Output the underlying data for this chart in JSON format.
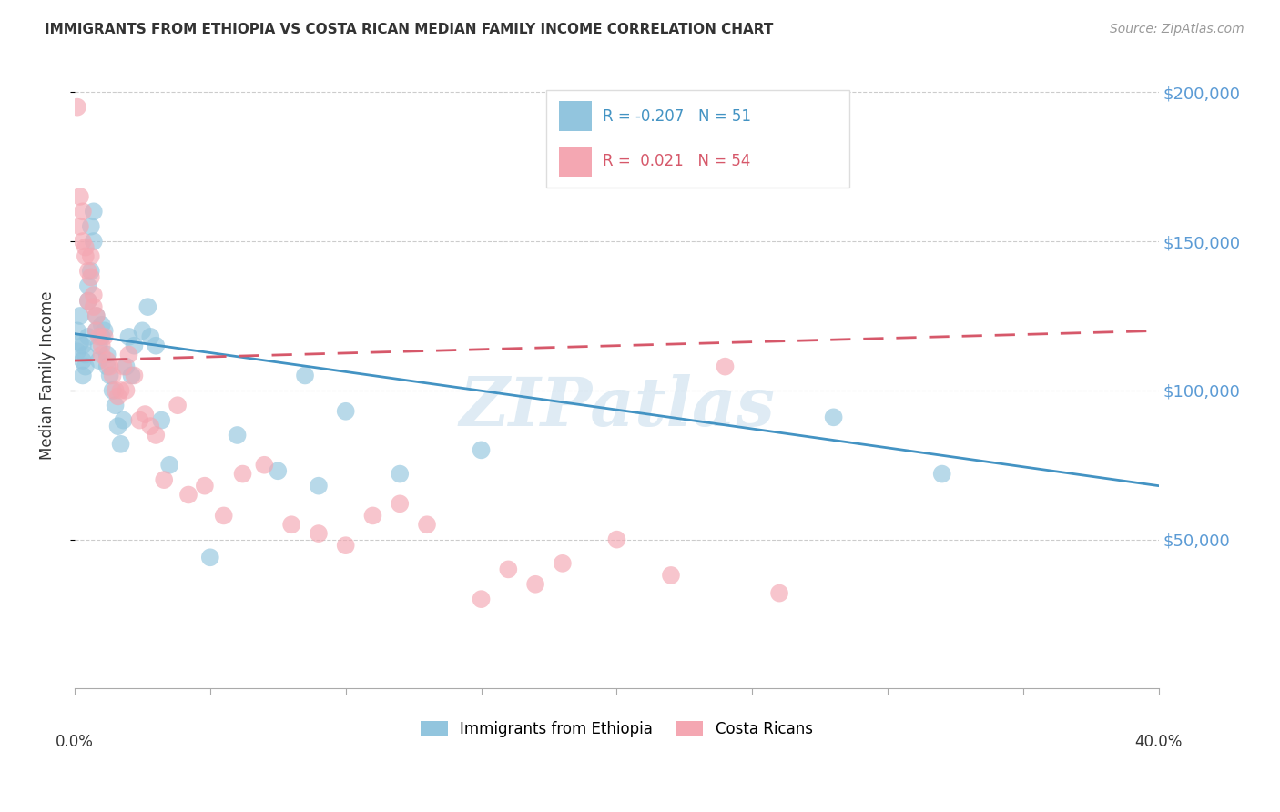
{
  "title": "IMMIGRANTS FROM ETHIOPIA VS COSTA RICAN MEDIAN FAMILY INCOME CORRELATION CHART",
  "source": "Source: ZipAtlas.com",
  "ylabel": "Median Family Income",
  "yticks": [
    50000,
    100000,
    150000,
    200000
  ],
  "ytick_labels": [
    "$50,000",
    "$100,000",
    "$150,000",
    "$200,000"
  ],
  "legend_label_blue": "Immigrants from Ethiopia",
  "legend_label_pink": "Costa Ricans",
  "blue_color": "#92c5de",
  "pink_color": "#f4a7b2",
  "line_blue_color": "#4393c3",
  "line_pink_color": "#d6586a",
  "background_color": "#ffffff",
  "grid_color": "#cccccc",
  "watermark": "ZIPatlas",
  "blue_scatter_x": [
    0.001,
    0.001,
    0.002,
    0.002,
    0.003,
    0.003,
    0.003,
    0.004,
    0.004,
    0.005,
    0.005,
    0.005,
    0.006,
    0.006,
    0.007,
    0.007,
    0.008,
    0.008,
    0.009,
    0.009,
    0.01,
    0.01,
    0.011,
    0.012,
    0.012,
    0.013,
    0.014,
    0.015,
    0.016,
    0.017,
    0.018,
    0.019,
    0.02,
    0.021,
    0.022,
    0.025,
    0.027,
    0.028,
    0.03,
    0.032,
    0.035,
    0.05,
    0.06,
    0.075,
    0.085,
    0.09,
    0.1,
    0.12,
    0.15,
    0.28,
    0.32
  ],
  "blue_scatter_y": [
    120000,
    113000,
    125000,
    116000,
    115000,
    110000,
    105000,
    108000,
    112000,
    135000,
    130000,
    118000,
    140000,
    155000,
    160000,
    150000,
    125000,
    120000,
    115000,
    110000,
    118000,
    122000,
    120000,
    108000,
    112000,
    105000,
    100000,
    95000,
    88000,
    82000,
    90000,
    108000,
    118000,
    105000,
    115000,
    120000,
    128000,
    118000,
    115000,
    90000,
    75000,
    44000,
    85000,
    73000,
    105000,
    68000,
    93000,
    72000,
    80000,
    91000,
    72000
  ],
  "pink_scatter_x": [
    0.001,
    0.002,
    0.002,
    0.003,
    0.003,
    0.004,
    0.004,
    0.005,
    0.005,
    0.006,
    0.006,
    0.007,
    0.007,
    0.008,
    0.008,
    0.009,
    0.01,
    0.01,
    0.011,
    0.012,
    0.013,
    0.014,
    0.015,
    0.016,
    0.017,
    0.018,
    0.019,
    0.02,
    0.022,
    0.024,
    0.026,
    0.028,
    0.03,
    0.033,
    0.038,
    0.042,
    0.048,
    0.055,
    0.062,
    0.07,
    0.08,
    0.09,
    0.1,
    0.11,
    0.12,
    0.13,
    0.15,
    0.16,
    0.17,
    0.18,
    0.2,
    0.22,
    0.24,
    0.26
  ],
  "pink_scatter_y": [
    195000,
    165000,
    155000,
    160000,
    150000,
    145000,
    148000,
    140000,
    130000,
    145000,
    138000,
    132000,
    128000,
    125000,
    120000,
    118000,
    115000,
    112000,
    118000,
    110000,
    108000,
    105000,
    100000,
    98000,
    100000,
    108000,
    100000,
    112000,
    105000,
    90000,
    92000,
    88000,
    85000,
    70000,
    95000,
    65000,
    68000,
    58000,
    72000,
    75000,
    55000,
    52000,
    48000,
    58000,
    62000,
    55000,
    30000,
    40000,
    35000,
    42000,
    50000,
    38000,
    108000,
    32000
  ],
  "xlim": [
    0.0,
    0.4
  ],
  "ylim": [
    0,
    210000
  ],
  "blue_line_x": [
    0.0,
    0.4
  ],
  "blue_line_y": [
    119000,
    68000
  ],
  "pink_line_x": [
    0.0,
    0.4
  ],
  "pink_line_y": [
    110000,
    120000
  ]
}
